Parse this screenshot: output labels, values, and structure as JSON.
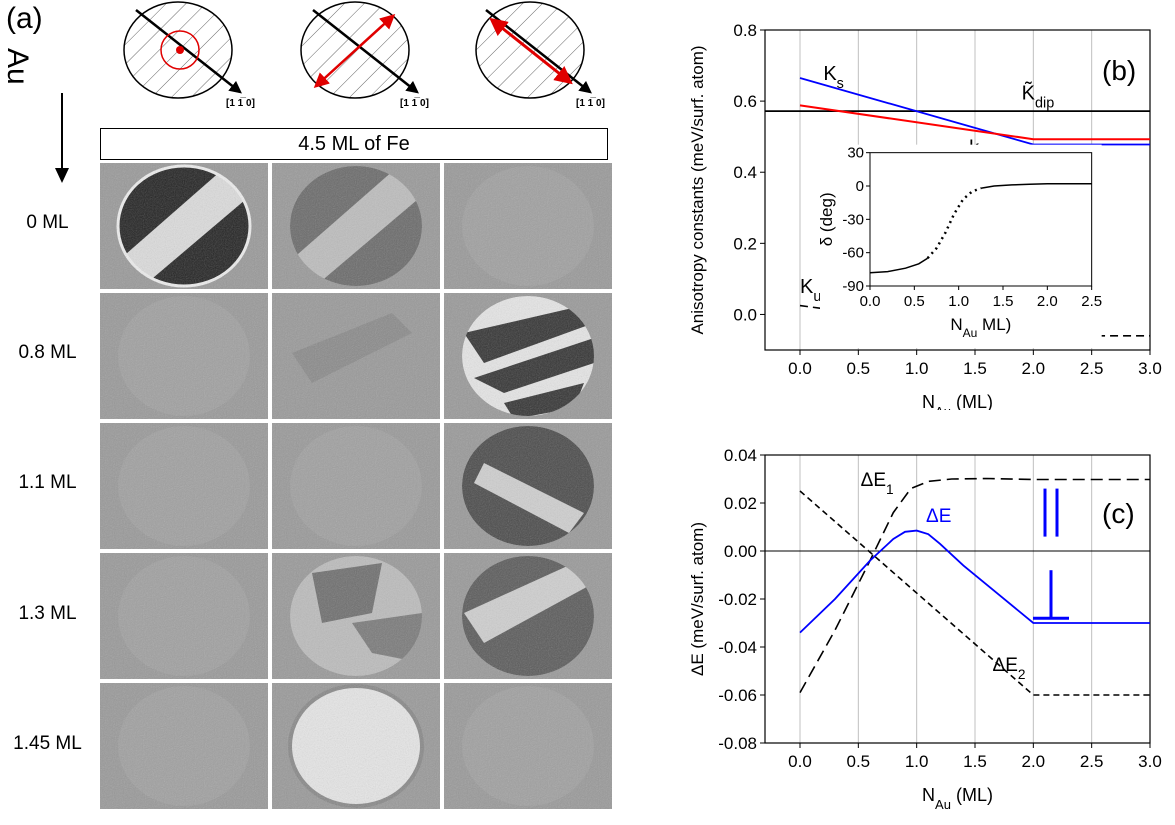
{
  "panel_a": {
    "label": "(a)",
    "au_label": "Au",
    "direction_label": "[1 1̅ 0]",
    "banner": "4.5 ML of Fe",
    "rows": [
      "0 ML",
      "0.8 ML",
      "1.1 ML",
      "1.3 ML",
      "1.45 ML"
    ]
  },
  "chart_data": [
    {
      "type": "line",
      "panel_label": "(b)",
      "xlabel": "N",
      "xlabel_sub": "Au",
      "xlabel_unit": " (ML)",
      "ylabel": "Anisotropy constants (meV/surf. atom)",
      "xlim": [
        -0.3,
        3.0
      ],
      "ylim": [
        -0.1,
        0.8
      ],
      "xticks": [
        "0.0",
        "0.5",
        "1.0",
        "1.5",
        "2.0",
        "2.5",
        "3.0"
      ],
      "yticks": [
        "0.8",
        "0.6",
        "0.4",
        "0.2",
        "0.0"
      ],
      "grid": "vertical",
      "series": [
        {
          "name": "K_s",
          "label_main": "K",
          "label_sub": "s",
          "color": "#0000ff",
          "x": [
            0.0,
            2.0,
            3.0
          ],
          "y": [
            0.665,
            0.478,
            0.478
          ]
        },
        {
          "name": "k_sp",
          "label_main": "k",
          "label_sub": "sp",
          "color": "#ff0000",
          "x": [
            0.0,
            2.0,
            3.0
          ],
          "y": [
            0.588,
            0.493,
            0.493
          ]
        },
        {
          "name": "K~_dip",
          "label_main": "K̃",
          "label_sub": "dip",
          "color": "#000000",
          "x": [
            -0.3,
            3.0
          ],
          "y": [
            0.572,
            0.572
          ]
        },
        {
          "name": "K_u",
          "label_main": "K",
          "label_sub": "u",
          "color": "#000000",
          "dash": true,
          "x": [
            0.0,
            2.0,
            3.0
          ],
          "y": [
            0.025,
            -0.06,
            -0.06
          ]
        }
      ],
      "inset": {
        "ylabel": "δ (deg)",
        "xlabel": "N",
        "xlabel_sub": "Au",
        "xlabel_unit": " ML)",
        "xlim": [
          0,
          2.5
        ],
        "ylim": [
          -90,
          30
        ],
        "xticks": [
          "0.0",
          "0.5",
          "1.0",
          "1.5",
          "2.0",
          "2.5"
        ],
        "yticks": [
          "30",
          "0",
          "-30",
          "-60",
          "-90"
        ],
        "curve": {
          "x": [
            0.0,
            0.2,
            0.4,
            0.55,
            0.65,
            0.75,
            0.85,
            0.95,
            1.05,
            1.15,
            1.25,
            1.4,
            1.6,
            1.8,
            2.0,
            2.2,
            2.5
          ],
          "y": [
            -78,
            -77,
            -74,
            -70,
            -65,
            -56,
            -42,
            -25,
            -12,
            -5,
            -2,
            0,
            1,
            1.5,
            2,
            2,
            2
          ]
        }
      }
    },
    {
      "type": "line",
      "panel_label": "(c)",
      "xlabel": "N",
      "xlabel_sub": "Au",
      "xlabel_unit": " (ML)",
      "ylabel": "ΔE (meV/surf. atom)",
      "xlim": [
        -0.3,
        3.0
      ],
      "ylim": [
        -0.08,
        0.04
      ],
      "xticks": [
        "0.0",
        "0.5",
        "1.0",
        "1.5",
        "2.0",
        "2.5",
        "3.0"
      ],
      "yticks": [
        "0.04",
        "0.02",
        "0.00",
        "-0.02",
        "-0.04",
        "-0.06",
        "-0.08"
      ],
      "grid": "vertical",
      "parallel_symbol": "||",
      "perp_symbol": "⊥",
      "series": [
        {
          "name": "ΔE_1",
          "label_main": "ΔE",
          "label_sub": "1",
          "color": "#000000",
          "dash": "long",
          "x": [
            0.0,
            0.3,
            0.6,
            0.8,
            0.95,
            1.1,
            1.3,
            1.6,
            2.0,
            2.5,
            3.0
          ],
          "y": [
            -0.059,
            -0.033,
            -0.004,
            0.016,
            0.026,
            0.029,
            0.03,
            0.0302,
            0.0298,
            0.0298,
            0.0298
          ]
        },
        {
          "name": "ΔE_2",
          "label_main": "ΔE",
          "label_sub": "2",
          "color": "#000000",
          "dash": "short",
          "x": [
            0.0,
            2.0,
            3.0
          ],
          "y": [
            0.025,
            -0.06,
            -0.06
          ]
        },
        {
          "name": "ΔE",
          "label_main": "ΔE",
          "label_sub": "",
          "color": "#0000ff",
          "x": [
            0.0,
            0.3,
            0.6,
            0.8,
            0.9,
            1.0,
            1.1,
            1.2,
            1.4,
            1.7,
            2.0,
            3.0
          ],
          "y": [
            -0.034,
            -0.02,
            -0.004,
            0.005,
            0.008,
            0.0085,
            0.007,
            0.003,
            -0.006,
            -0.018,
            -0.03,
            -0.03
          ]
        }
      ]
    }
  ]
}
